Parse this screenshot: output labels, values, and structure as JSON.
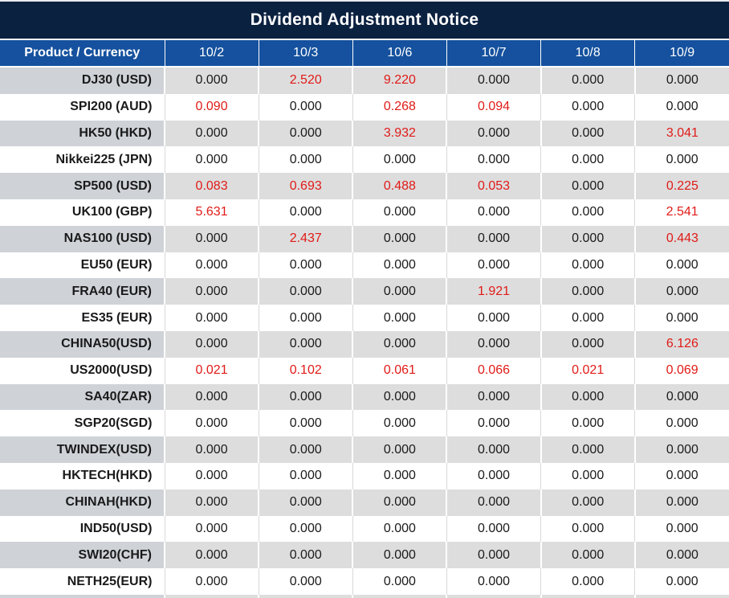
{
  "title": "Dividend Adjustment Notice",
  "table": {
    "product_header": "Product / Currency",
    "date_headers": [
      "10/2",
      "10/3",
      "10/6",
      "10/7",
      "10/8",
      "10/9"
    ],
    "rows": [
      {
        "product": "DJ30 (USD)",
        "values": [
          "0.000",
          "2.520",
          "9.220",
          "0.000",
          "0.000",
          "0.000"
        ],
        "red": [
          false,
          true,
          true,
          false,
          false,
          false
        ]
      },
      {
        "product": "SPI200 (AUD)",
        "values": [
          "0.090",
          "0.000",
          "0.268",
          "0.094",
          "0.000",
          "0.000"
        ],
        "red": [
          true,
          false,
          true,
          true,
          false,
          false
        ]
      },
      {
        "product": "HK50 (HKD)",
        "values": [
          "0.000",
          "0.000",
          "3.932",
          "0.000",
          "0.000",
          "3.041"
        ],
        "red": [
          false,
          false,
          true,
          false,
          false,
          true
        ]
      },
      {
        "product": "Nikkei225 (JPN)",
        "values": [
          "0.000",
          "0.000",
          "0.000",
          "0.000",
          "0.000",
          "0.000"
        ],
        "red": [
          false,
          false,
          false,
          false,
          false,
          false
        ]
      },
      {
        "product": "SP500 (USD)",
        "values": [
          "0.083",
          "0.693",
          "0.488",
          "0.053",
          "0.000",
          "0.225"
        ],
        "red": [
          true,
          true,
          true,
          true,
          false,
          true
        ]
      },
      {
        "product": "UK100 (GBP)",
        "values": [
          "5.631",
          "0.000",
          "0.000",
          "0.000",
          "0.000",
          "2.541"
        ],
        "red": [
          true,
          false,
          false,
          false,
          false,
          true
        ]
      },
      {
        "product": "NAS100 (USD)",
        "values": [
          "0.000",
          "2.437",
          "0.000",
          "0.000",
          "0.000",
          "0.443"
        ],
        "red": [
          false,
          true,
          false,
          false,
          false,
          true
        ]
      },
      {
        "product": "EU50 (EUR)",
        "values": [
          "0.000",
          "0.000",
          "0.000",
          "0.000",
          "0.000",
          "0.000"
        ],
        "red": [
          false,
          false,
          false,
          false,
          false,
          false
        ]
      },
      {
        "product": "FRA40 (EUR)",
        "values": [
          "0.000",
          "0.000",
          "0.000",
          "1.921",
          "0.000",
          "0.000"
        ],
        "red": [
          false,
          false,
          false,
          true,
          false,
          false
        ]
      },
      {
        "product": "ES35 (EUR)",
        "values": [
          "0.000",
          "0.000",
          "0.000",
          "0.000",
          "0.000",
          "0.000"
        ],
        "red": [
          false,
          false,
          false,
          false,
          false,
          false
        ]
      },
      {
        "product": "CHINA50(USD)",
        "values": [
          "0.000",
          "0.000",
          "0.000",
          "0.000",
          "0.000",
          "6.126"
        ],
        "red": [
          false,
          false,
          false,
          false,
          false,
          true
        ]
      },
      {
        "product": "US2000(USD)",
        "values": [
          "0.021",
          "0.102",
          "0.061",
          "0.066",
          "0.021",
          "0.069"
        ],
        "red": [
          true,
          true,
          true,
          true,
          true,
          true
        ]
      },
      {
        "product": "SA40(ZAR)",
        "values": [
          "0.000",
          "0.000",
          "0.000",
          "0.000",
          "0.000",
          "0.000"
        ],
        "red": [
          false,
          false,
          false,
          false,
          false,
          false
        ]
      },
      {
        "product": "SGP20(SGD)",
        "values": [
          "0.000",
          "0.000",
          "0.000",
          "0.000",
          "0.000",
          "0.000"
        ],
        "red": [
          false,
          false,
          false,
          false,
          false,
          false
        ]
      },
      {
        "product": "TWINDEX(USD)",
        "values": [
          "0.000",
          "0.000",
          "0.000",
          "0.000",
          "0.000",
          "0.000"
        ],
        "red": [
          false,
          false,
          false,
          false,
          false,
          false
        ]
      },
      {
        "product": "HKTECH(HKD)",
        "values": [
          "0.000",
          "0.000",
          "0.000",
          "0.000",
          "0.000",
          "0.000"
        ],
        "red": [
          false,
          false,
          false,
          false,
          false,
          false
        ]
      },
      {
        "product": "CHINAH(HKD)",
        "values": [
          "0.000",
          "0.000",
          "0.000",
          "0.000",
          "0.000",
          "0.000"
        ],
        "red": [
          false,
          false,
          false,
          false,
          false,
          false
        ]
      },
      {
        "product": "IND50(USD)",
        "values": [
          "0.000",
          "0.000",
          "0.000",
          "0.000",
          "0.000",
          "0.000"
        ],
        "red": [
          false,
          false,
          false,
          false,
          false,
          false
        ]
      },
      {
        "product": "SWI20(CHF)",
        "values": [
          "0.000",
          "0.000",
          "0.000",
          "0.000",
          "0.000",
          "0.000"
        ],
        "red": [
          false,
          false,
          false,
          false,
          false,
          false
        ]
      },
      {
        "product": "NETH25(EUR)",
        "values": [
          "0.000",
          "0.000",
          "0.000",
          "0.000",
          "0.000",
          "0.000"
        ],
        "red": [
          false,
          false,
          false,
          false,
          false,
          false
        ]
      }
    ]
  },
  "colors": {
    "title_bar_bg": "#0b2140",
    "header_bg": "#15519e",
    "header_text": "#ffffff",
    "row_stripe_product_bg": "#cfd3d8",
    "row_stripe_value_bg": "#dddddd",
    "row_white_bg": "#ffffff",
    "plain_row_border": "#d9d9d9",
    "value_text": "#1a1a1a",
    "highlight_red": "#e01b18"
  },
  "chart_data": {
    "type": "table",
    "title": "Dividend Adjustment Notice",
    "columns": [
      "Product / Currency",
      "10/2",
      "10/3",
      "10/6",
      "10/7",
      "10/8",
      "10/9"
    ],
    "rows": [
      [
        "DJ30 (USD)",
        0.0,
        2.52,
        9.22,
        0.0,
        0.0,
        0.0
      ],
      [
        "SPI200 (AUD)",
        0.09,
        0.0,
        0.268,
        0.094,
        0.0,
        0.0
      ],
      [
        "HK50 (HKD)",
        0.0,
        0.0,
        3.932,
        0.0,
        0.0,
        3.041
      ],
      [
        "Nikkei225 (JPN)",
        0.0,
        0.0,
        0.0,
        0.0,
        0.0,
        0.0
      ],
      [
        "SP500 (USD)",
        0.083,
        0.693,
        0.488,
        0.053,
        0.0,
        0.225
      ],
      [
        "UK100 (GBP)",
        5.631,
        0.0,
        0.0,
        0.0,
        0.0,
        2.541
      ],
      [
        "NAS100 (USD)",
        0.0,
        2.437,
        0.0,
        0.0,
        0.0,
        0.443
      ],
      [
        "EU50 (EUR)",
        0.0,
        0.0,
        0.0,
        0.0,
        0.0,
        0.0
      ],
      [
        "FRA40 (EUR)",
        0.0,
        0.0,
        0.0,
        1.921,
        0.0,
        0.0
      ],
      [
        "ES35 (EUR)",
        0.0,
        0.0,
        0.0,
        0.0,
        0.0,
        0.0
      ],
      [
        "CHINA50(USD)",
        0.0,
        0.0,
        0.0,
        0.0,
        0.0,
        6.126
      ],
      [
        "US2000(USD)",
        0.021,
        0.102,
        0.061,
        0.066,
        0.021,
        0.069
      ],
      [
        "SA40(ZAR)",
        0.0,
        0.0,
        0.0,
        0.0,
        0.0,
        0.0
      ],
      [
        "SGP20(SGD)",
        0.0,
        0.0,
        0.0,
        0.0,
        0.0,
        0.0
      ],
      [
        "TWINDEX(USD)",
        0.0,
        0.0,
        0.0,
        0.0,
        0.0,
        0.0
      ],
      [
        "HKTECH(HKD)",
        0.0,
        0.0,
        0.0,
        0.0,
        0.0,
        0.0
      ],
      [
        "CHINAH(HKD)",
        0.0,
        0.0,
        0.0,
        0.0,
        0.0,
        0.0
      ],
      [
        "IND50(USD)",
        0.0,
        0.0,
        0.0,
        0.0,
        0.0,
        0.0
      ],
      [
        "SWI20(CHF)",
        0.0,
        0.0,
        0.0,
        0.0,
        0.0,
        0.0
      ],
      [
        "NETH25(EUR)",
        0.0,
        0.0,
        0.0,
        0.0,
        0.0,
        0.0
      ]
    ],
    "highlight_rule": "non-zero values rendered in red",
    "layout": "striped rows (gray/white), dark navy title bar, blue header row"
  }
}
